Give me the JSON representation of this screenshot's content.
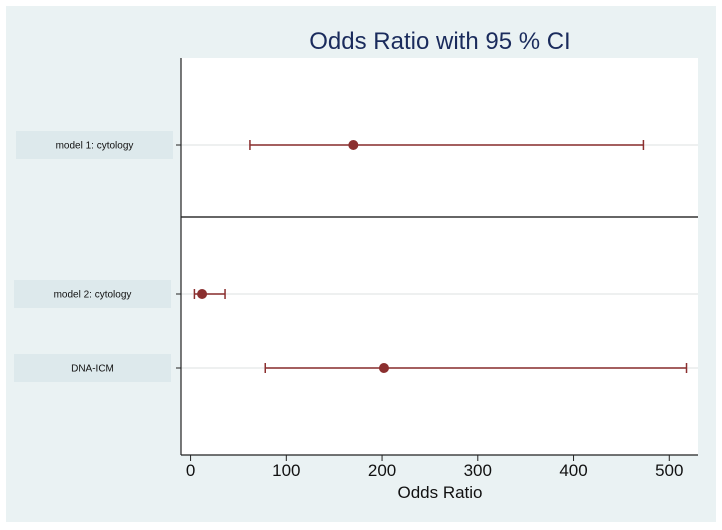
{
  "chart_data": {
    "type": "forest",
    "title": "Odds Ratio with 95 % CI",
    "xlabel": "Odds Ratio",
    "ylabel": "",
    "xlim": [
      -10,
      530
    ],
    "xticks": [
      0,
      100,
      200,
      300,
      400,
      500
    ],
    "grid": false,
    "groups": [
      {
        "rows": [
          {
            "label": "model 1: cytology",
            "or": 170,
            "lower": 62,
            "upper": 473
          }
        ]
      },
      {
        "rows": [
          {
            "label": "model 2: cytology",
            "or": 12,
            "lower": 4,
            "upper": 36
          },
          {
            "label": "DNA-ICM",
            "or": 202,
            "lower": 78,
            "upper": 518
          }
        ]
      }
    ],
    "colors": {
      "marker": "#8b2f2f",
      "ci_line": "#8b2f2f",
      "background": "#eaf2f3",
      "plot_area": "#ffffff",
      "title": "#1a2b5c"
    }
  }
}
